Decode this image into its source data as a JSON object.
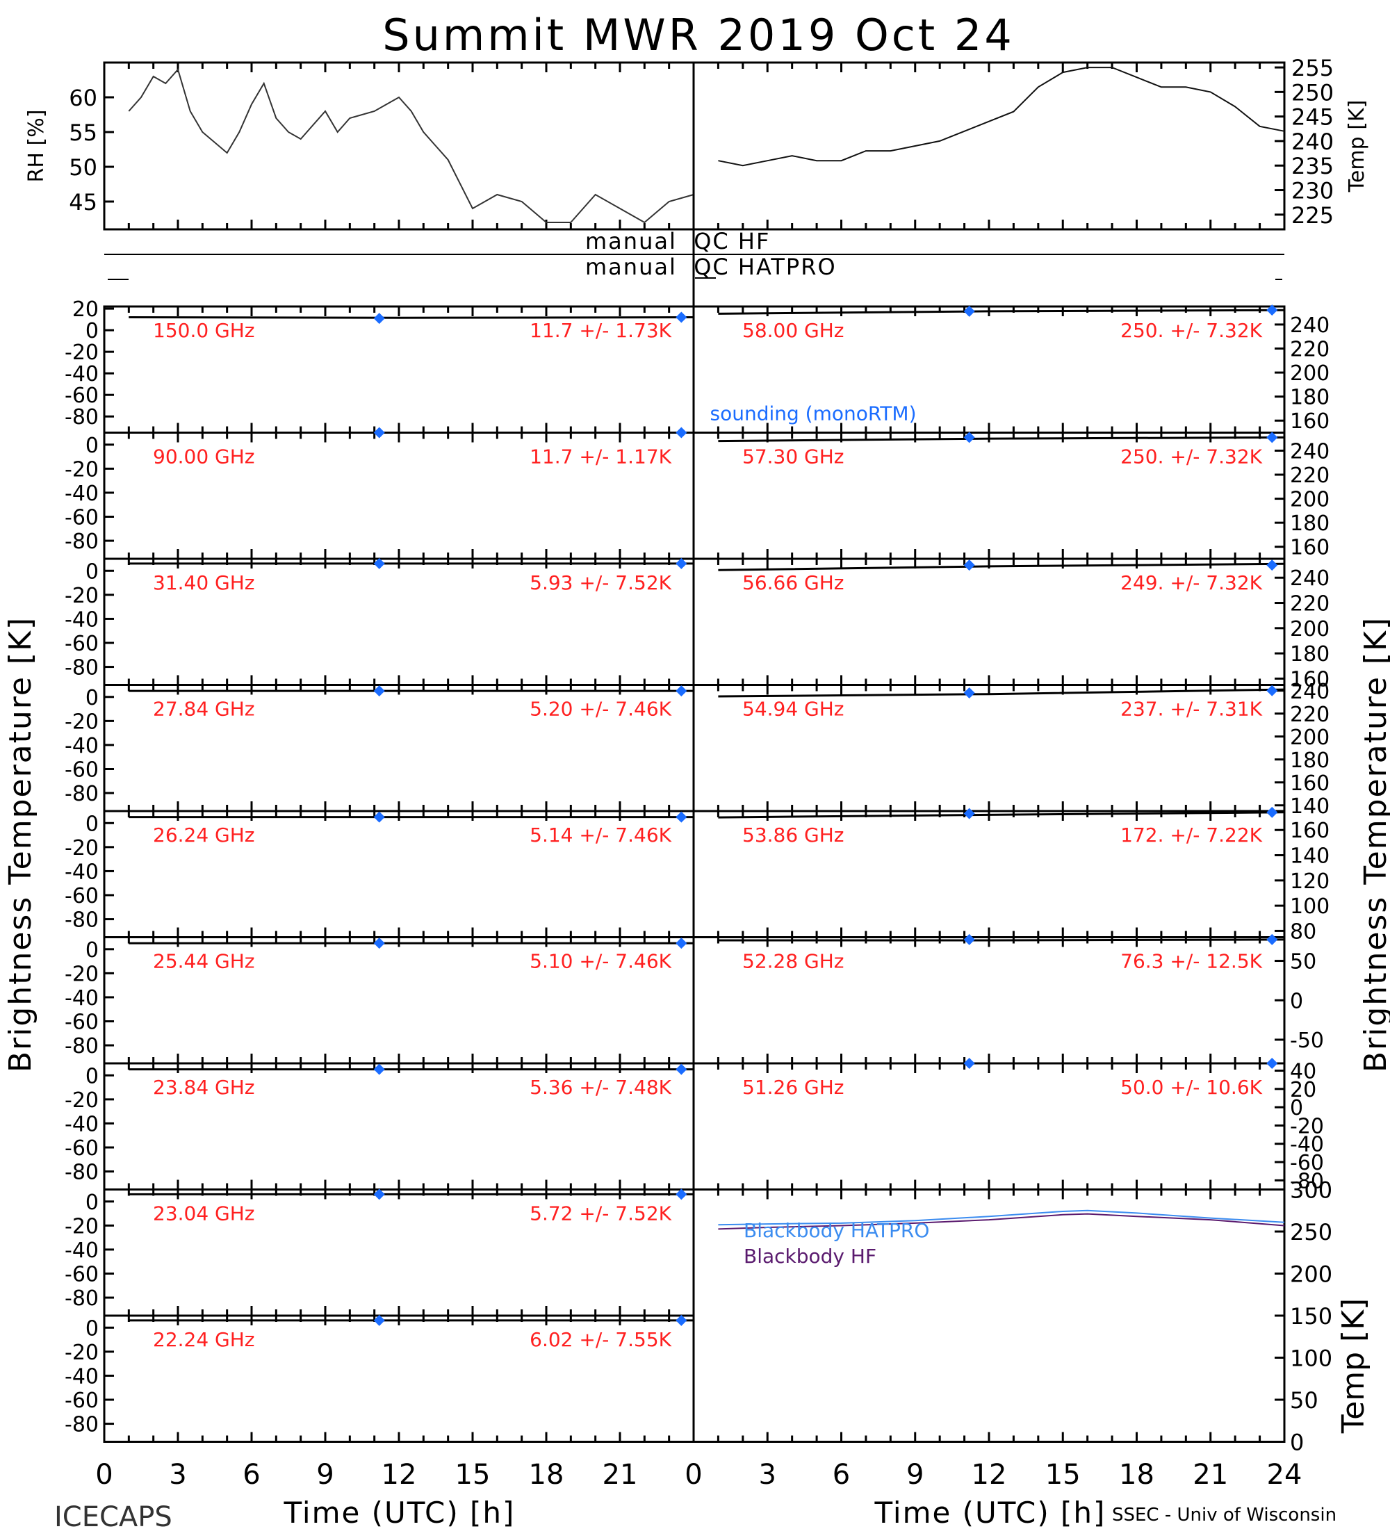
{
  "title": "Summit MWR 2019 Oct 24",
  "footer": {
    "left": "ICECAPS",
    "right": "SSEC - Univ of Wisconsin"
  },
  "side_labels": {
    "left": "Brightness Temperature [K]",
    "right": "Brightness Temperature [K]"
  },
  "colors": {
    "axis": "#000000",
    "annotation": "#ff2020",
    "sounding": "#1a6cff",
    "hatpro": "#3b8cf0",
    "hf": "#5a1a6e"
  },
  "qc": {
    "hf_label": "manual  QC HF",
    "hatpro_label": "manual  QC HATPRO"
  },
  "chart_data": [
    {
      "type": "line",
      "panel": "rh",
      "ylabel": "RH [%]",
      "ylim": [
        41,
        65
      ],
      "yticks": [
        "45",
        "50",
        "55",
        "60"
      ],
      "xlim": [
        0,
        24
      ],
      "series": [
        {
          "x": [
            1,
            1.5,
            2,
            2.5,
            3,
            3.5,
            4,
            5,
            5.5,
            6,
            6.5,
            7,
            7.5,
            8,
            9,
            9.5,
            10,
            11,
            11.5,
            12,
            12.5,
            13,
            13.5,
            14,
            15,
            16,
            17,
            18,
            19,
            20,
            21,
            22,
            23,
            24
          ],
          "values": [
            58,
            60,
            63,
            62,
            64,
            58,
            55,
            52,
            55,
            59,
            62,
            57,
            55,
            54,
            58,
            55,
            57,
            58,
            59,
            60,
            58,
            55,
            53,
            51,
            44,
            46,
            45,
            42,
            42,
            46,
            44,
            42,
            45,
            46
          ]
        }
      ]
    },
    {
      "type": "line",
      "panel": "temp",
      "ylabel": "Temp [K]",
      "ylim": [
        222,
        256
      ],
      "yticks": [
        "225",
        "230",
        "235",
        "240",
        "245",
        "250",
        "255"
      ],
      "xlim": [
        0,
        24
      ],
      "series": [
        {
          "x": [
            1,
            2,
            3,
            4,
            5,
            6,
            7,
            8,
            9,
            10,
            11,
            12,
            13,
            14,
            15,
            16,
            17,
            18,
            19,
            20,
            21,
            22,
            23,
            24
          ],
          "values": [
            236,
            235,
            236,
            237,
            236,
            236,
            238,
            238,
            239,
            240,
            242,
            244,
            246,
            251,
            254,
            255,
            255,
            253,
            251,
            251,
            250,
            247,
            243,
            242
          ]
        }
      ]
    },
    {
      "type": "line",
      "panel": "150.0",
      "label": "150.0 GHz",
      "stat": "11.7 +/-  1.73K",
      "yticks": [
        "20",
        "0",
        "-20",
        "-40",
        "-60",
        "-80"
      ],
      "ylim": [
        -95,
        22
      ],
      "xlim": [
        0,
        24
      ],
      "series": [
        {
          "x": [
            1,
            12,
            24
          ],
          "values": [
            12,
            11.5,
            12
          ]
        }
      ],
      "sounding": {
        "x": [
          11.2,
          23.5
        ],
        "values": [
          11,
          12
        ]
      }
    },
    {
      "type": "line",
      "panel": "90.00",
      "label": "90.00 GHz",
      "stat": "11.7 +/-  1.17K",
      "yticks": [
        "0",
        "-20",
        "-40",
        "-60",
        "-80"
      ],
      "ylim": [
        -95,
        10
      ],
      "xlim": [
        0,
        24
      ],
      "series": [
        {
          "x": [
            1,
            12,
            24
          ],
          "values": [
            12,
            12,
            12
          ]
        }
      ],
      "sounding": {
        "x": [
          11.2,
          23.5
        ],
        "values": [
          10,
          10
        ]
      }
    },
    {
      "type": "line",
      "panel": "31.40",
      "label": "31.40 GHz",
      "stat": "5.93 +/-  7.52K",
      "yticks": [
        "0",
        "-20",
        "-40",
        "-60",
        "-80"
      ],
      "ylim": [
        -95,
        10
      ],
      "xlim": [
        0,
        24
      ],
      "series": [
        {
          "x": [
            1,
            12,
            24
          ],
          "values": [
            6,
            6,
            6
          ]
        }
      ],
      "sounding": {
        "x": [
          11.2,
          23.5
        ],
        "values": [
          6,
          6
        ]
      }
    },
    {
      "type": "line",
      "panel": "27.84",
      "label": "27.84 GHz",
      "stat": "5.20 +/-  7.46K",
      "yticks": [
        "0",
        "-20",
        "-40",
        "-60",
        "-80"
      ],
      "ylim": [
        -95,
        10
      ],
      "xlim": [
        0,
        24
      ],
      "series": [
        {
          "x": [
            1,
            12,
            24
          ],
          "values": [
            5,
            5,
            5
          ]
        }
      ],
      "sounding": {
        "x": [
          11.2,
          23.5
        ],
        "values": [
          5,
          5
        ]
      }
    },
    {
      "type": "line",
      "panel": "26.24",
      "label": "26.24 GHz",
      "stat": "5.14 +/-  7.46K",
      "yticks": [
        "0",
        "-20",
        "-40",
        "-60",
        "-80"
      ],
      "ylim": [
        -95,
        10
      ],
      "xlim": [
        0,
        24
      ],
      "series": [
        {
          "x": [
            1,
            12,
            24
          ],
          "values": [
            5,
            5,
            5
          ]
        }
      ],
      "sounding": {
        "x": [
          11.2,
          23.5
        ],
        "values": [
          5,
          5
        ]
      }
    },
    {
      "type": "line",
      "panel": "25.44",
      "label": "25.44 GHz",
      "stat": "5.10 +/-  7.46K",
      "yticks": [
        "0",
        "-20",
        "-40",
        "-60",
        "-80"
      ],
      "ylim": [
        -95,
        10
      ],
      "xlim": [
        0,
        24
      ],
      "series": [
        {
          "x": [
            1,
            12,
            24
          ],
          "values": [
            5,
            5,
            5
          ]
        }
      ],
      "sounding": {
        "x": [
          11.2,
          23.5
        ],
        "values": [
          5,
          5
        ]
      }
    },
    {
      "type": "line",
      "panel": "23.84",
      "label": "23.84 GHz",
      "stat": "5.36 +/-  7.48K",
      "yticks": [
        "0",
        "-20",
        "-40",
        "-60",
        "-80"
      ],
      "ylim": [
        -95,
        10
      ],
      "xlim": [
        0,
        24
      ],
      "series": [
        {
          "x": [
            1,
            12,
            24
          ],
          "values": [
            5,
            5,
            5
          ]
        }
      ],
      "sounding": {
        "x": [
          11.2,
          23.5
        ],
        "values": [
          5,
          5
        ]
      }
    },
    {
      "type": "line",
      "panel": "23.04",
      "label": "23.04 GHz",
      "stat": "5.72 +/-  7.52K",
      "yticks": [
        "0",
        "-20",
        "-40",
        "-60",
        "-80"
      ],
      "ylim": [
        -95,
        10
      ],
      "xlim": [
        0,
        24
      ],
      "series": [
        {
          "x": [
            1,
            12,
            24
          ],
          "values": [
            6,
            6,
            6
          ]
        }
      ],
      "sounding": {
        "x": [
          11.2,
          23.5
        ],
        "values": [
          6,
          6
        ]
      }
    },
    {
      "type": "line",
      "panel": "22.24",
      "label": "22.24 GHz",
      "stat": "6.02 +/-  7.55K",
      "yticks": [
        "0",
        "-20",
        "-40",
        "-60",
        "-80"
      ],
      "ylim": [
        -95,
        10
      ],
      "xlim": [
        0,
        24
      ],
      "series": [
        {
          "x": [
            1,
            12,
            24
          ],
          "values": [
            6,
            6,
            6
          ]
        }
      ],
      "sounding": {
        "x": [
          11.2,
          23.5
        ],
        "values": [
          6,
          6
        ]
      }
    },
    {
      "type": "line",
      "panel": "58.00",
      "label": "58.00 GHz",
      "stat": "250. +/-  7.32K",
      "yticks": [
        "240",
        "220",
        "200",
        "180",
        "160"
      ],
      "ylim": [
        150,
        255
      ],
      "xlim": [
        0,
        24
      ],
      "series": [
        {
          "x": [
            1,
            12,
            24
          ],
          "values": [
            249,
            251,
            252
          ]
        }
      ],
      "sounding": {
        "x": [
          11.2,
          23.5
        ],
        "values": [
          251,
          252
        ]
      },
      "annotation": "sounding (monoRTM)"
    },
    {
      "type": "line",
      "panel": "57.30",
      "label": "57.30 GHz",
      "stat": "250. +/-  7.32K",
      "yticks": [
        "240",
        "220",
        "200",
        "180",
        "160"
      ],
      "ylim": [
        150,
        255
      ],
      "xlim": [
        0,
        24
      ],
      "series": [
        {
          "x": [
            1,
            12,
            24
          ],
          "values": [
            248,
            250,
            251
          ]
        }
      ],
      "sounding": {
        "x": [
          11.2,
          23.5
        ],
        "values": [
          251,
          251
        ]
      }
    },
    {
      "type": "line",
      "panel": "56.66",
      "label": "56.66 GHz",
      "stat": "249. +/-  7.32K",
      "yticks": [
        "240",
        "220",
        "200",
        "180",
        "160"
      ],
      "ylim": [
        155,
        255
      ],
      "xlim": [
        0,
        24
      ],
      "series": [
        {
          "x": [
            1,
            12,
            24
          ],
          "values": [
            246,
            249,
            251
          ]
        }
      ],
      "sounding": {
        "x": [
          11.2,
          23.5
        ],
        "values": [
          250,
          250
        ]
      }
    },
    {
      "type": "line",
      "panel": "54.94",
      "label": "54.94 GHz",
      "stat": "237. +/-  7.31K",
      "yticks": [
        "240",
        "220",
        "200",
        "180",
        "160",
        "140"
      ],
      "ylim": [
        135,
        245
      ],
      "xlim": [
        0,
        24
      ],
      "series": [
        {
          "x": [
            1,
            12,
            24
          ],
          "values": [
            235,
            237,
            241
          ]
        }
      ],
      "sounding": {
        "x": [
          11.2,
          23.5
        ],
        "values": [
          238,
          240
        ]
      }
    },
    {
      "type": "line",
      "panel": "53.86",
      "label": "53.86 GHz",
      "stat": "172. +/-  7.22K",
      "yticks": [
        "160",
        "140",
        "120",
        "100",
        "80"
      ],
      "ylim": [
        75,
        175
      ],
      "xlim": [
        0,
        24
      ],
      "series": [
        {
          "x": [
            1,
            12,
            24
          ],
          "values": [
            170,
            172,
            174
          ]
        }
      ],
      "sounding": {
        "x": [
          11.2,
          23.5
        ],
        "values": [
          173,
          174
        ]
      }
    },
    {
      "type": "line",
      "panel": "52.28",
      "label": "52.28 GHz",
      "stat": "76.3 +/-  12.5K",
      "yticks": [
        "50",
        "0",
        "-50"
      ],
      "ylim": [
        -80,
        80
      ],
      "xlim": [
        0,
        24
      ],
      "series": [
        {
          "x": [
            1,
            12,
            24
          ],
          "values": [
            76,
            76,
            77
          ]
        }
      ],
      "sounding": {
        "x": [
          11.2,
          23.5
        ],
        "values": [
          77,
          77
        ]
      }
    },
    {
      "type": "line",
      "panel": "51.26",
      "label": "51.26 GHz",
      "stat": "50.0 +/-  10.6K",
      "yticks": [
        "40",
        "20",
        "0",
        "-20",
        "-40",
        "-60",
        "-80"
      ],
      "ylim": [
        -90,
        48
      ],
      "xlim": [
        0,
        24
      ],
      "series": [
        {
          "x": [
            1,
            12,
            24
          ],
          "values": [
            50,
            50,
            50
          ]
        }
      ],
      "sounding": {
        "x": [
          11.2,
          23.5
        ],
        "values": [
          50,
          50
        ]
      }
    },
    {
      "type": "line",
      "panel": "blackbody",
      "ylabel": "Temp [K]",
      "ylim": [
        0,
        300
      ],
      "yticks": [
        "300",
        "250",
        "200",
        "150",
        "100",
        "50",
        "0"
      ],
      "xlim": [
        0,
        24
      ],
      "series": [
        {
          "name": "Blackbody HATPRO",
          "x": [
            1,
            3,
            6,
            9,
            12,
            15,
            16,
            18,
            21,
            24
          ],
          "values": [
            258,
            259,
            260,
            263,
            268,
            274,
            275,
            272,
            266,
            261
          ]
        },
        {
          "name": "Blackbody HF",
          "x": [
            1,
            3,
            6,
            9,
            12,
            15,
            16,
            18,
            21,
            24
          ],
          "values": [
            253,
            255,
            257,
            260,
            264,
            270,
            271,
            268,
            264,
            257
          ]
        }
      ]
    }
  ],
  "xaxis": {
    "label": "Time (UTC) [h]",
    "ticks_left": [
      "0",
      "3",
      "6",
      "9",
      "12",
      "15",
      "18",
      "21"
    ],
    "ticks_right": [
      "0",
      "3",
      "6",
      "9",
      "12",
      "15",
      "18",
      "21",
      "24"
    ]
  }
}
